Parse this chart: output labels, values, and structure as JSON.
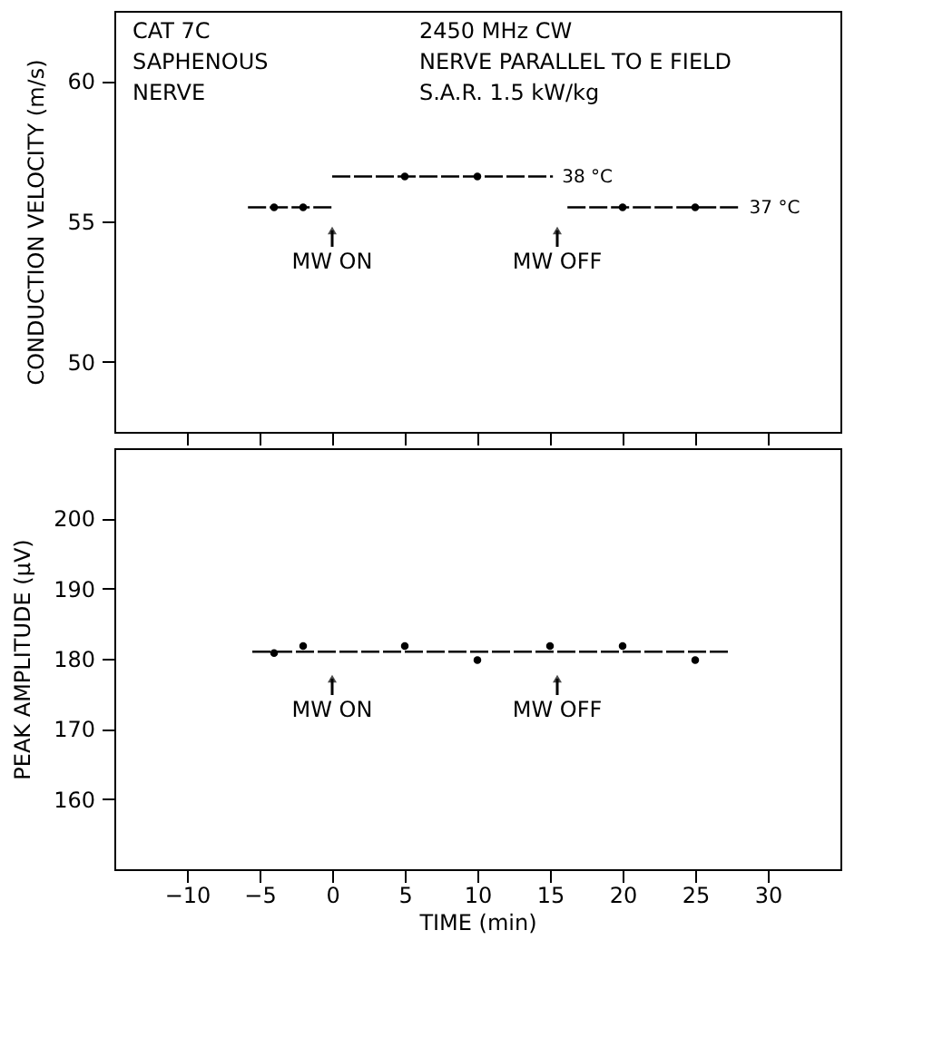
{
  "chart_data": [
    {
      "type": "line",
      "ylabel": "CONDUCTION VELOCITY (m/s)",
      "xlim": [
        -15,
        35
      ],
      "xticks": [
        -10,
        -5,
        0,
        5,
        10,
        15,
        20,
        25,
        30
      ],
      "ylim": [
        47.5,
        62.5
      ],
      "yticks": [
        50,
        55,
        60
      ],
      "tick_labels": "y",
      "grid": false,
      "line_style": "dashed",
      "series": [
        {
          "color": "#000000",
          "x": [
            -5.8,
            0
          ],
          "values": [
            55.5,
            55.5
          ]
        },
        {
          "color": "#000000",
          "x": [
            0,
            15.2
          ],
          "values": [
            56.6,
            56.6
          ]
        },
        {
          "color": "#000000",
          "x": [
            16.2,
            28.1
          ],
          "values": [
            55.5,
            55.5
          ]
        },
        {
          "type": "scatter",
          "marker": "circle",
          "color": "#000000",
          "x": [
            -4,
            -2,
            5,
            10,
            20,
            25
          ],
          "values": [
            55.5,
            55.5,
            56.6,
            56.6,
            55.5,
            55.5
          ]
        }
      ],
      "annotations": [
        "CAT 7C",
        "SAPHENOUS",
        "NERVE",
        "2450 MHz   CW",
        "NERVE PARALLEL TO E FIELD",
        "S.A.R. 1.5 kW/kg",
        {
          "text": "38 °C",
          "x": 15.2,
          "y": 56.6
        },
        {
          "text": "37 °C",
          "x": 28.1,
          "y": 55.5
        },
        "MW ON",
        "MW OFF"
      ]
    },
    {
      "type": "line",
      "xlabel": "TIME (min)",
      "ylabel": "PEAK AMPLITUDE (μV)",
      "xlim": [
        -15,
        35
      ],
      "xticks": [
        -10,
        -5,
        0,
        5,
        10,
        15,
        20,
        25,
        30
      ],
      "ylim": [
        150,
        210
      ],
      "yticks": [
        160,
        170,
        180,
        190,
        200
      ],
      "grid": false,
      "line_style": "dashed",
      "series": [
        {
          "color": "#000000",
          "x": [
            -5.5,
            27.5
          ],
          "values": [
            181,
            181
          ]
        },
        {
          "type": "scatter",
          "marker": "circle",
          "color": "#000000",
          "x": [
            -4,
            -2,
            5,
            10,
            15,
            20,
            25
          ],
          "values": [
            180.8,
            181.8,
            181.8,
            179.8,
            181.8,
            181.8,
            179.8
          ]
        }
      ],
      "annotations": [
        "MW ON",
        "MW OFF"
      ]
    }
  ]
}
